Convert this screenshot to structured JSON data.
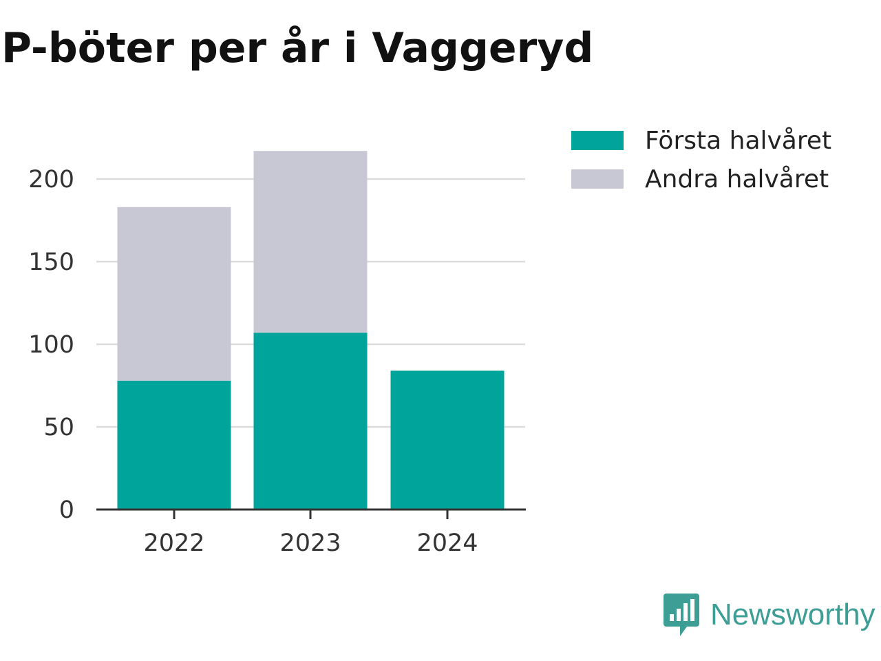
{
  "chart_data": {
    "type": "bar",
    "stacked": true,
    "title": "P-böter per år i Vaggeryd",
    "categories": [
      "2022",
      "2023",
      "2024"
    ],
    "series": [
      {
        "name": "Första halvåret",
        "color": "#00a49a",
        "values": [
          78,
          107,
          84
        ]
      },
      {
        "name": "Andra halvåret",
        "color": "#c8c8d4",
        "values": [
          105,
          110,
          0
        ]
      }
    ],
    "yticks": [
      "0",
      "50",
      "100",
      "150",
      "200"
    ],
    "ylim": [
      0,
      200
    ],
    "grid": true,
    "legend_position": "top-right"
  },
  "brand": {
    "name": "Newsworthy",
    "color": "#3d9e96",
    "icon": "speech-bubble-bar-chart-icon"
  }
}
